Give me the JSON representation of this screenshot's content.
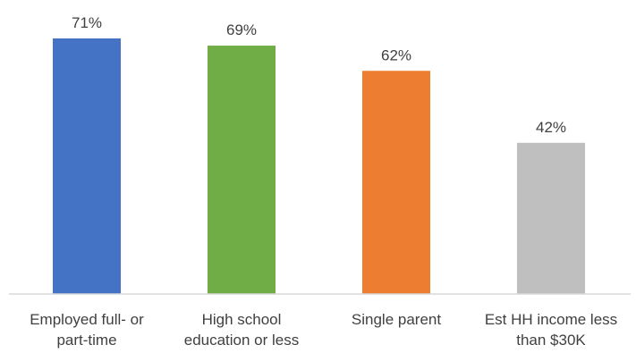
{
  "chart_data": {
    "type": "bar",
    "title": "",
    "xlabel": "",
    "ylabel": "",
    "categories": [
      [
        "Employed full- or",
        "part-time"
      ],
      [
        "High school",
        "education or less"
      ],
      [
        "Single parent"
      ],
      [
        "Est HH income less",
        "than $30K"
      ]
    ],
    "values": [
      71,
      69,
      62,
      42
    ],
    "value_labels": [
      "71%",
      "69%",
      "62%",
      "42%"
    ],
    "colors": [
      "#4472C4",
      "#70AD47",
      "#ED7D31",
      "#BFBFBF"
    ],
    "ylim": [
      0,
      71
    ],
    "grid": false,
    "legend": "none"
  }
}
